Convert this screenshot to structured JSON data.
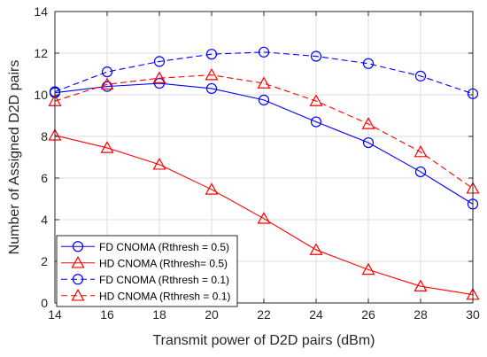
{
  "chart_data": {
    "type": "line",
    "title": "",
    "xlabel": "Transmit power of D2D pairs (dBm)",
    "ylabel": "Number of Assigned D2D pairs",
    "x": [
      14,
      16,
      18,
      20,
      22,
      24,
      26,
      28,
      30
    ],
    "xlim": [
      14,
      30
    ],
    "ylim": [
      0,
      14
    ],
    "xticks": [
      14,
      16,
      18,
      20,
      22,
      24,
      26,
      28,
      30
    ],
    "yticks": [
      0,
      2,
      4,
      6,
      8,
      10,
      12,
      14
    ],
    "grid": true,
    "legend_position": "bottom-left",
    "series": [
      {
        "name": "FD CNOMA (Rthresh = 0.5)",
        "color": "#0000ff",
        "dash": "solid",
        "marker": "circle",
        "values": [
          10.1,
          10.4,
          10.55,
          10.3,
          9.75,
          8.7,
          7.7,
          6.3,
          4.75
        ]
      },
      {
        "name": "HD CNOMA (Rthresh= 0.5)",
        "color": "#ff0000",
        "dash": "solid",
        "marker": "triangle",
        "values": [
          8.05,
          7.45,
          6.65,
          5.45,
          4.05,
          2.55,
          1.6,
          0.8,
          0.4
        ]
      },
      {
        "name": "FD CNOMA (Rthresh = 0.1)",
        "color": "#0000ff",
        "dash": "dashed",
        "marker": "circle",
        "values": [
          10.15,
          11.1,
          11.6,
          11.95,
          12.05,
          11.85,
          11.5,
          10.9,
          10.05
        ]
      },
      {
        "name": "HD CNOMA (Rthresh = 0.1)",
        "color": "#ff0000",
        "dash": "dashed",
        "marker": "triangle",
        "values": [
          9.7,
          10.5,
          10.8,
          10.95,
          10.55,
          9.7,
          8.6,
          7.25,
          5.5
        ]
      }
    ]
  }
}
